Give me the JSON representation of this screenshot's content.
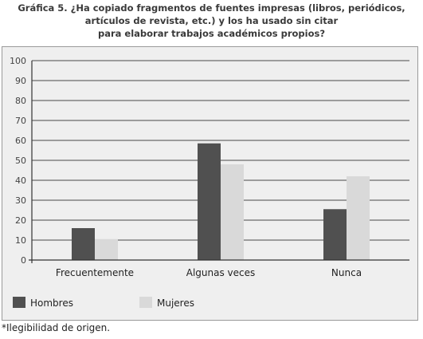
{
  "chart_data": {
    "type": "bar",
    "title_lines": [
      "Gráfica 5. ¿Ha copiado fragmentos de fuentes impresas (libros, periódicos,",
      "artículos de revista, etc.) y los ha usado sin citar",
      "para elaborar trabajos académicos propios?"
    ],
    "categories": [
      "Frecuentemente",
      "Algunas veces",
      "Nunca"
    ],
    "series": [
      {
        "name": "Hombres",
        "values": [
          16,
          58.5,
          25.5
        ],
        "color": "#505050"
      },
      {
        "name": "Mujeres",
        "values": [
          10.5,
          48,
          42
        ],
        "color": "#d9d9d9"
      }
    ],
    "ylim": [
      0,
      100
    ],
    "yticks": [
      "0",
      "10",
      "20",
      "30",
      "40",
      "50",
      "60",
      "70",
      "80",
      "90",
      "100"
    ],
    "grid": true,
    "legend_position": "bottom-left"
  },
  "footnote": "*Ilegibilidad de origen."
}
